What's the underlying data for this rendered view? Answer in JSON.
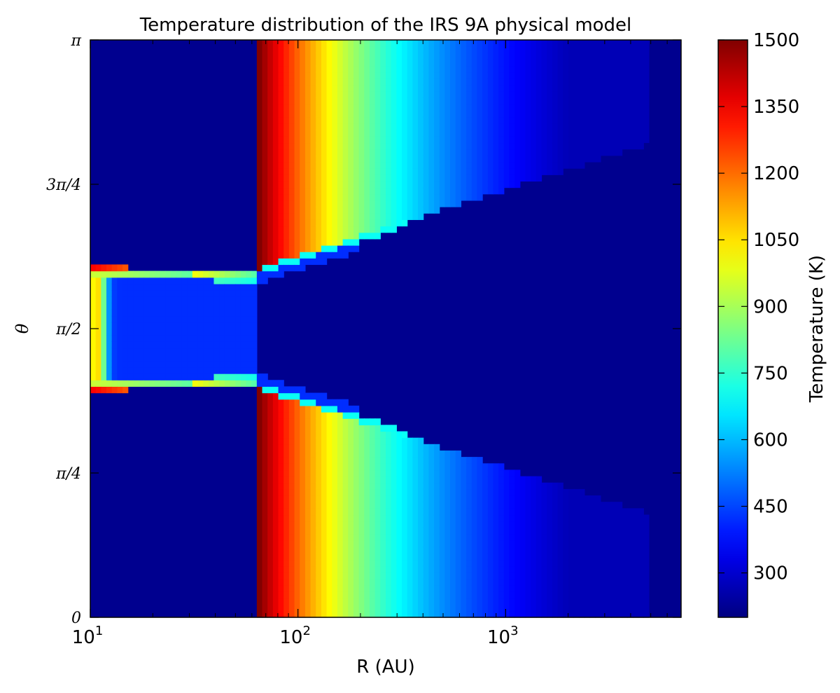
{
  "chart_data": {
    "type": "heatmap",
    "title": "Temperature distribution of the IRS 9A physical model",
    "xlabel": "R (AU)",
    "ylabel": "θ",
    "x_scale": "log",
    "xlim": [
      10,
      7000
    ],
    "ylim": [
      0,
      3.14159
    ],
    "x_ticks": [
      {
        "value": 10,
        "base": "10",
        "exp": "1"
      },
      {
        "value": 100,
        "base": "10",
        "exp": "2"
      },
      {
        "value": 1000,
        "base": "10",
        "exp": "3"
      }
    ],
    "y_ticks": [
      {
        "value": 0,
        "label": "0"
      },
      {
        "value": 0.7854,
        "label": "π/4"
      },
      {
        "value": 1.5708,
        "label": "π/2"
      },
      {
        "value": 2.3562,
        "label": "3π/4"
      },
      {
        "value": 3.14159,
        "label": "π"
      }
    ],
    "colorbar": {
      "label": "Temperature (K)",
      "colormap": "jet",
      "range": [
        200,
        1500
      ],
      "ticks": [
        300,
        450,
        600,
        750,
        900,
        1050,
        1200,
        1350,
        1500
      ]
    },
    "regions": {
      "dust_sublimation_radius_au": 65,
      "inner_disk_outer_radius_au": 55,
      "disk_half_opening_at_10au_rad": 0.34,
      "outer_edge_radius_au": 5000,
      "min_temperature_k": 200,
      "max_temperature_k": 1500
    }
  }
}
